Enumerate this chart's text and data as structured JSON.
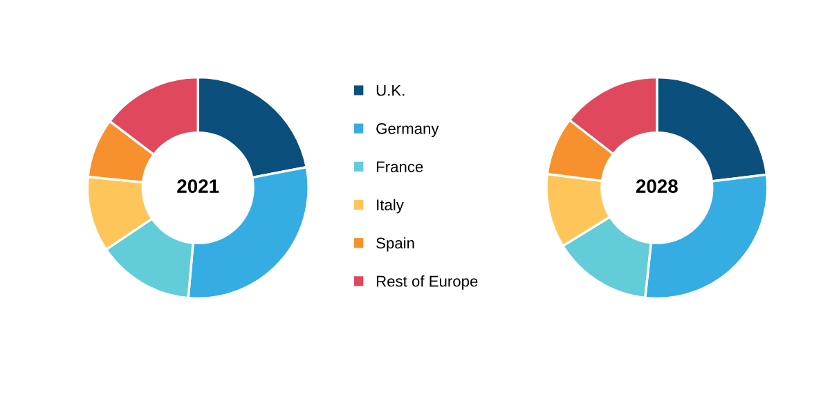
{
  "chart_data": [
    {
      "type": "donut",
      "title": "2021",
      "categories": [
        "U.K.",
        "Germany",
        "France",
        "Italy",
        "Spain",
        "Rest of Europe"
      ],
      "values": [
        22,
        29.4,
        14.2,
        11,
        8.7,
        14.7
      ],
      "colors": [
        "#0b4f7c",
        "#35ade3",
        "#62cdd9",
        "#fec65a",
        "#f7912d",
        "#e0485d"
      ],
      "legend": "right"
    },
    {
      "type": "donut",
      "title": "2028",
      "categories": [
        null,
        null,
        null,
        null,
        null,
        null
      ],
      "values": [
        23.1,
        28.6,
        14.5,
        10.8,
        8.5,
        14.5
      ],
      "colors": [
        "#0b4f7c",
        "#35ade3",
        "#62cdd9",
        "#fec65a",
        "#f7912d",
        "#e0485d"
      ]
    }
  ]
}
